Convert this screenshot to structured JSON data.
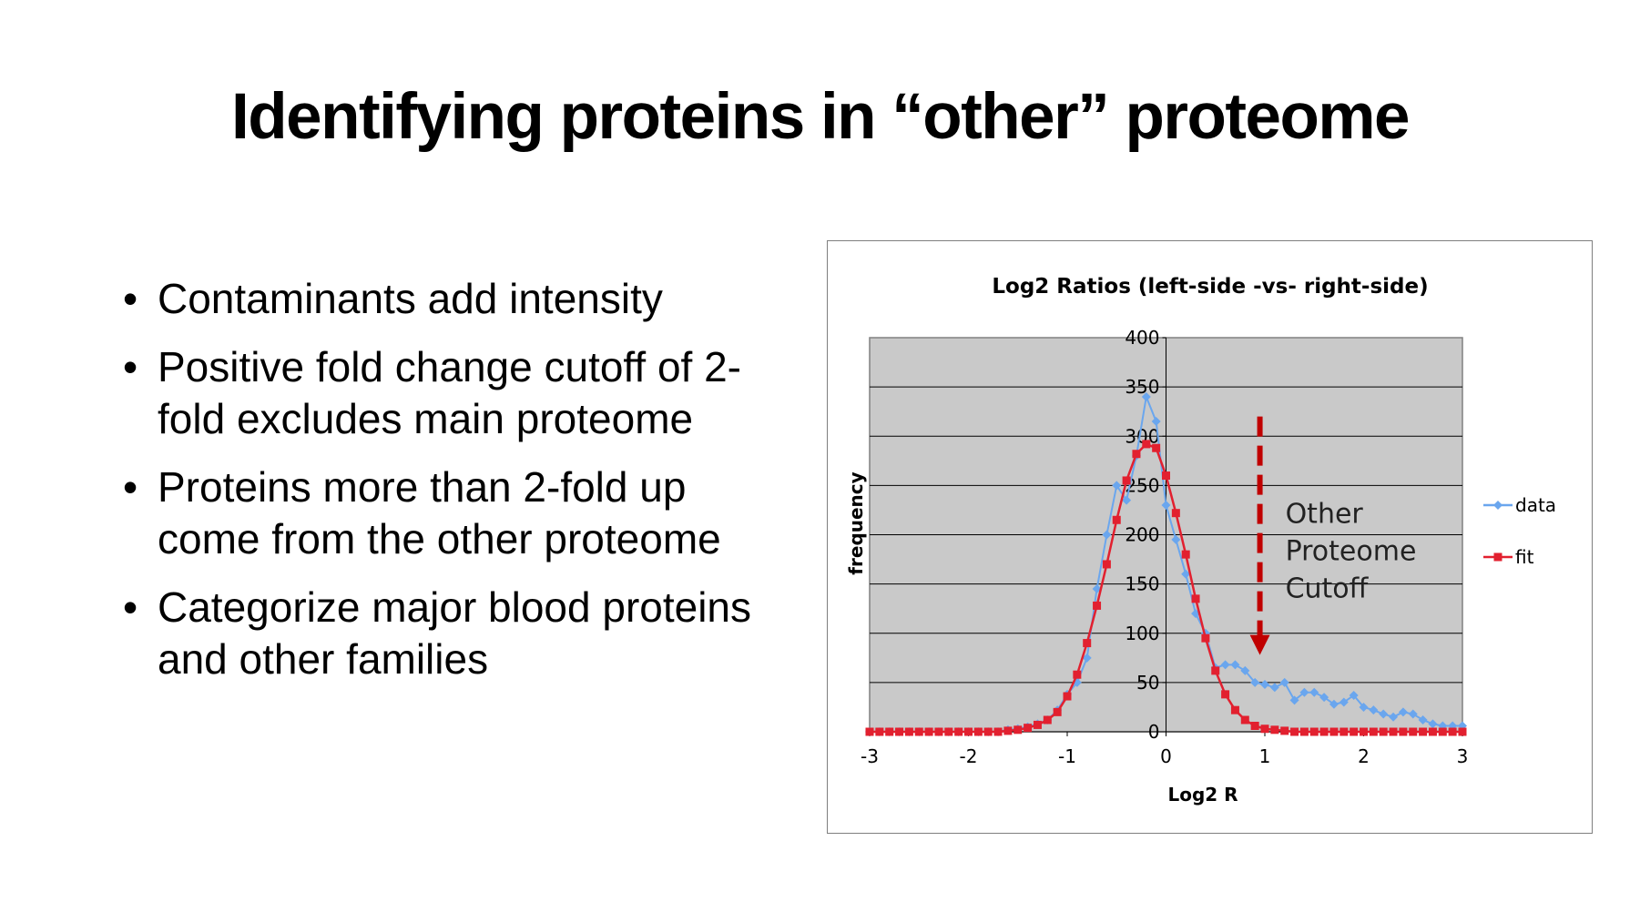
{
  "slide": {
    "title": "Identifying proteins in “other” proteome",
    "bullets": [
      "Contaminants add intensity",
      "Positive fold change cutoff of 2-fold excludes main proteome",
      "Proteins more than 2-fold up come from the other proteome",
      "Categorize major blood proteins and other families"
    ]
  },
  "chart_data": {
    "type": "line",
    "title": "Log2 Ratios (left-side -vs- right-side)",
    "xlabel": "Log2 R",
    "ylabel": "frequency",
    "xlim": [
      -3,
      3
    ],
    "ylim": [
      0,
      400
    ],
    "x_ticks": [
      "-3",
      "-2",
      "-1",
      "0",
      "1",
      "2",
      "3"
    ],
    "y_ticks": [
      "0",
      "50",
      "100",
      "150",
      "200",
      "250",
      "300",
      "350",
      "400"
    ],
    "grid": true,
    "legend_position": "right",
    "annotation": {
      "text_lines": [
        "Other",
        "Proteome",
        "Cutoff"
      ],
      "x": 0.95,
      "y_top": 320,
      "y_bottom": 78,
      "color": "#c00000"
    },
    "series": [
      {
        "name": "data",
        "color": "#6aa6ee",
        "marker": "diamond",
        "x": [
          -3.0,
          -2.9,
          -2.8,
          -2.7,
          -2.6,
          -2.5,
          -2.4,
          -2.3,
          -2.2,
          -2.1,
          -2.0,
          -1.9,
          -1.8,
          -1.7,
          -1.6,
          -1.5,
          -1.4,
          -1.3,
          -1.2,
          -1.1,
          -1.0,
          -0.9,
          -0.8,
          -0.7,
          -0.6,
          -0.5,
          -0.4,
          -0.3,
          -0.2,
          -0.1,
          0.0,
          0.1,
          0.2,
          0.3,
          0.4,
          0.5,
          0.6,
          0.7,
          0.8,
          0.9,
          1.0,
          1.1,
          1.2,
          1.3,
          1.4,
          1.5,
          1.6,
          1.7,
          1.8,
          1.9,
          2.0,
          2.1,
          2.2,
          2.3,
          2.4,
          2.5,
          2.6,
          2.7,
          2.8,
          2.9,
          3.0
        ],
        "values": [
          0,
          0,
          0,
          0,
          0,
          0,
          0,
          0,
          0,
          0,
          0,
          0,
          0,
          0,
          2,
          3,
          5,
          8,
          12,
          22,
          38,
          50,
          75,
          145,
          200,
          250,
          235,
          280,
          340,
          315,
          230,
          195,
          160,
          120,
          100,
          65,
          68,
          68,
          62,
          50,
          48,
          45,
          50,
          32,
          40,
          40,
          35,
          28,
          30,
          37,
          25,
          22,
          18,
          15,
          20,
          18,
          12,
          8,
          6,
          6,
          6
        ]
      },
      {
        "name": "fit",
        "color": "#e2202f",
        "marker": "square",
        "x": [
          -3.0,
          -2.9,
          -2.8,
          -2.7,
          -2.6,
          -2.5,
          -2.4,
          -2.3,
          -2.2,
          -2.1,
          -2.0,
          -1.9,
          -1.8,
          -1.7,
          -1.6,
          -1.5,
          -1.4,
          -1.3,
          -1.2,
          -1.1,
          -1.0,
          -0.9,
          -0.8,
          -0.7,
          -0.6,
          -0.5,
          -0.4,
          -0.3,
          -0.2,
          -0.1,
          0.0,
          0.1,
          0.2,
          0.3,
          0.4,
          0.5,
          0.6,
          0.7,
          0.8,
          0.9,
          1.0,
          1.1,
          1.2,
          1.3,
          1.4,
          1.5,
          1.6,
          1.7,
          1.8,
          1.9,
          2.0,
          2.1,
          2.2,
          2.3,
          2.4,
          2.5,
          2.6,
          2.7,
          2.8,
          2.9,
          3.0
        ],
        "values": [
          0,
          0,
          0,
          0,
          0,
          0,
          0,
          0,
          0,
          0,
          0,
          0,
          0,
          0,
          1,
          2,
          4,
          7,
          12,
          20,
          36,
          58,
          90,
          128,
          170,
          215,
          255,
          282,
          292,
          288,
          260,
          222,
          180,
          135,
          95,
          62,
          38,
          22,
          12,
          6,
          3,
          2,
          1,
          0,
          0,
          0,
          0,
          0,
          0,
          0,
          0,
          0,
          0,
          0,
          0,
          0,
          0,
          0,
          0,
          0,
          0
        ]
      }
    ]
  }
}
